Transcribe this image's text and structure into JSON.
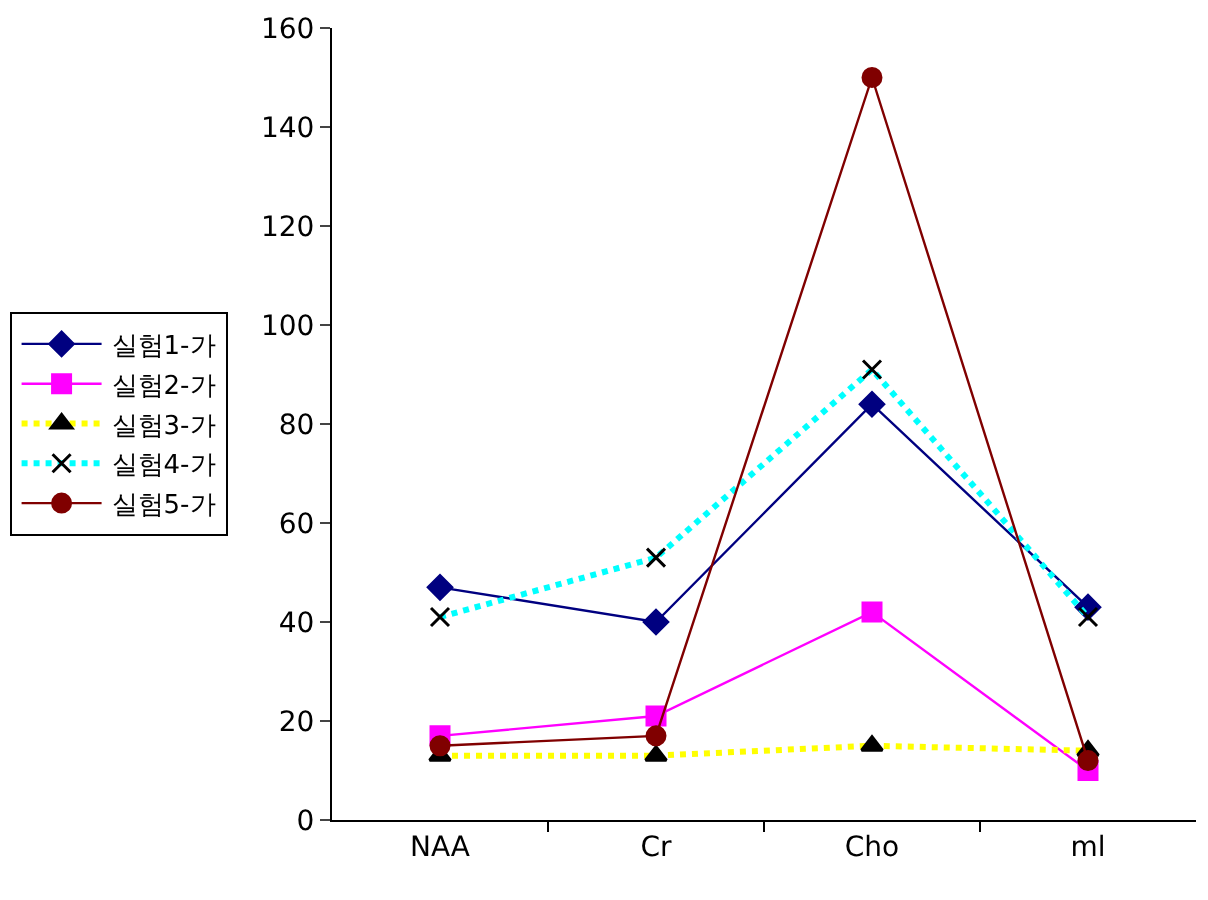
{
  "chart_data": {
    "type": "line",
    "categories": [
      "NAA",
      "Cr",
      "Cho",
      "ml"
    ],
    "ylim": [
      0,
      160
    ],
    "yticks": [
      0,
      20,
      40,
      60,
      80,
      100,
      120,
      140,
      160
    ],
    "legend": "left",
    "series": [
      {
        "name": "실험1-가",
        "color": "#000080",
        "marker": "diamond",
        "line_style": "solid",
        "values": [
          47,
          40,
          84,
          43
        ]
      },
      {
        "name": "실험2-가",
        "color": "#ff00ff",
        "marker": "square",
        "line_style": "solid",
        "values": [
          17,
          21,
          42,
          10
        ]
      },
      {
        "name": "실험3-가",
        "color": "#ffff00",
        "marker": "triangle",
        "line_style": "dotted",
        "values": [
          13,
          13,
          15,
          14
        ]
      },
      {
        "name": "실험4-가",
        "color": "#00ffff",
        "marker": "cross",
        "line_style": "dotted",
        "values": [
          41,
          53,
          91,
          41
        ]
      },
      {
        "name": "실험5-가",
        "color": "#800000",
        "marker": "circle",
        "line_style": "solid",
        "values": [
          15,
          17,
          150,
          12
        ]
      }
    ]
  }
}
